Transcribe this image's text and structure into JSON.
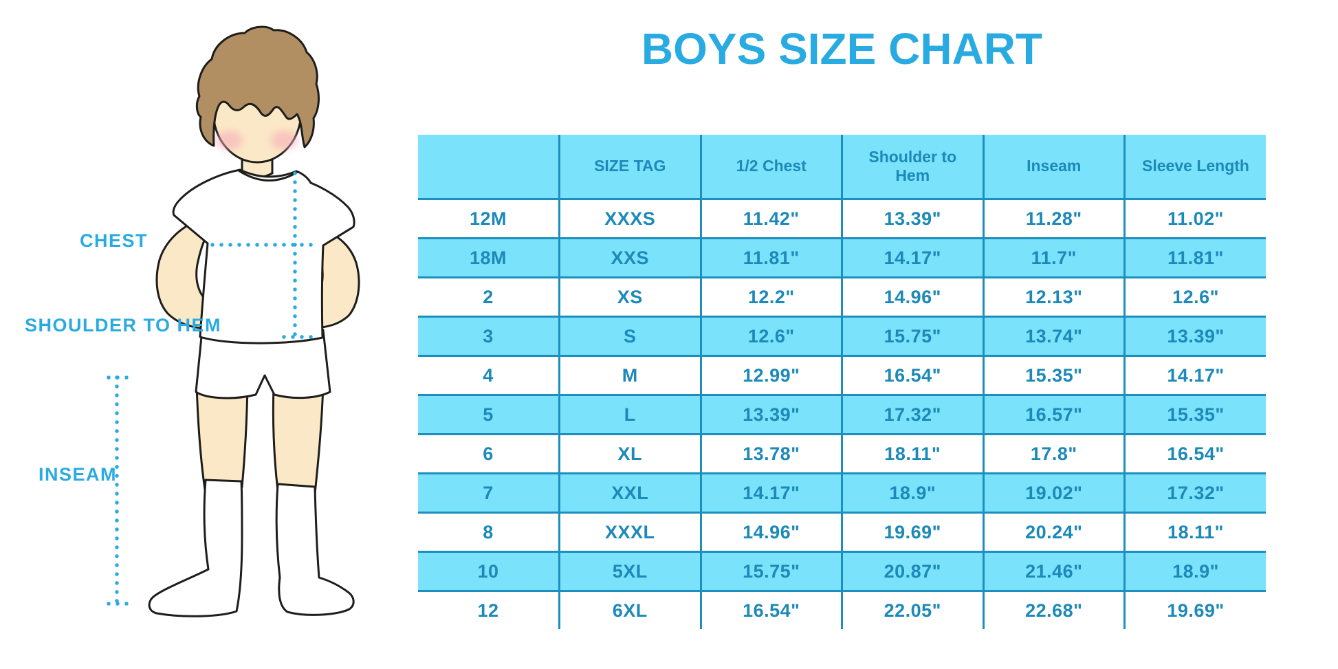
{
  "title": "BOYS SIZE CHART",
  "diagram": {
    "description": "outline illustration of a boy in white t-shirt, shorts and knee socks with dotted measurement guides",
    "chest_label": "CHEST",
    "shoulder_to_hem_label": "SHOULDER TO HEM",
    "inseam_label": "INSEAM"
  },
  "colors": {
    "title_blue": "#29ABE2",
    "table_text_blue": "#1C89B8",
    "table_border_blue": "#1C8FBF",
    "row_highlight_blue": "#7BE2FB",
    "row_alt_white": "#FFFFFF",
    "dotted_line_blue": "#29ABE2",
    "skin": "#FBE8C6",
    "hair_brown": "#B28F63",
    "cheek_pink": "#F5A8B8",
    "outline_dark": "#1D1D1B"
  },
  "chart_data": {
    "type": "table",
    "title": "BOYS SIZE CHART",
    "columns": [
      "",
      "SIZE TAG",
      "1/2 Chest",
      "Shoulder to Hem",
      "Inseam",
      "Sleeve Length"
    ],
    "rows": [
      [
        "12M",
        "XXXS",
        "11.42\"",
        "13.39\"",
        "11.28\"",
        "11.02\""
      ],
      [
        "18M",
        "XXS",
        "11.81\"",
        "14.17\"",
        "11.7\"",
        "11.81\""
      ],
      [
        "2",
        "XS",
        "12.2\"",
        "14.96\"",
        "12.13\"",
        "12.6\""
      ],
      [
        "3",
        "S",
        "12.6\"",
        "15.75\"",
        "13.74\"",
        "13.39\""
      ],
      [
        "4",
        "M",
        "12.99\"",
        "16.54\"",
        "15.35\"",
        "14.17\""
      ],
      [
        "5",
        "L",
        "13.39\"",
        "17.32\"",
        "16.57\"",
        "15.35\""
      ],
      [
        "6",
        "XL",
        "13.78\"",
        "18.11\"",
        "17.8\"",
        "16.54\""
      ],
      [
        "7",
        "XXL",
        "14.17\"",
        "18.9\"",
        "19.02\"",
        "17.32\""
      ],
      [
        "8",
        "XXXL",
        "14.96\"",
        "19.69\"",
        "20.24\"",
        "18.11\""
      ],
      [
        "10",
        "5XL",
        "15.75\"",
        "20.87\"",
        "21.46\"",
        "18.9\""
      ],
      [
        "12",
        "6XL",
        "16.54\"",
        "22.05\"",
        "22.68\"",
        "19.69\""
      ]
    ]
  }
}
